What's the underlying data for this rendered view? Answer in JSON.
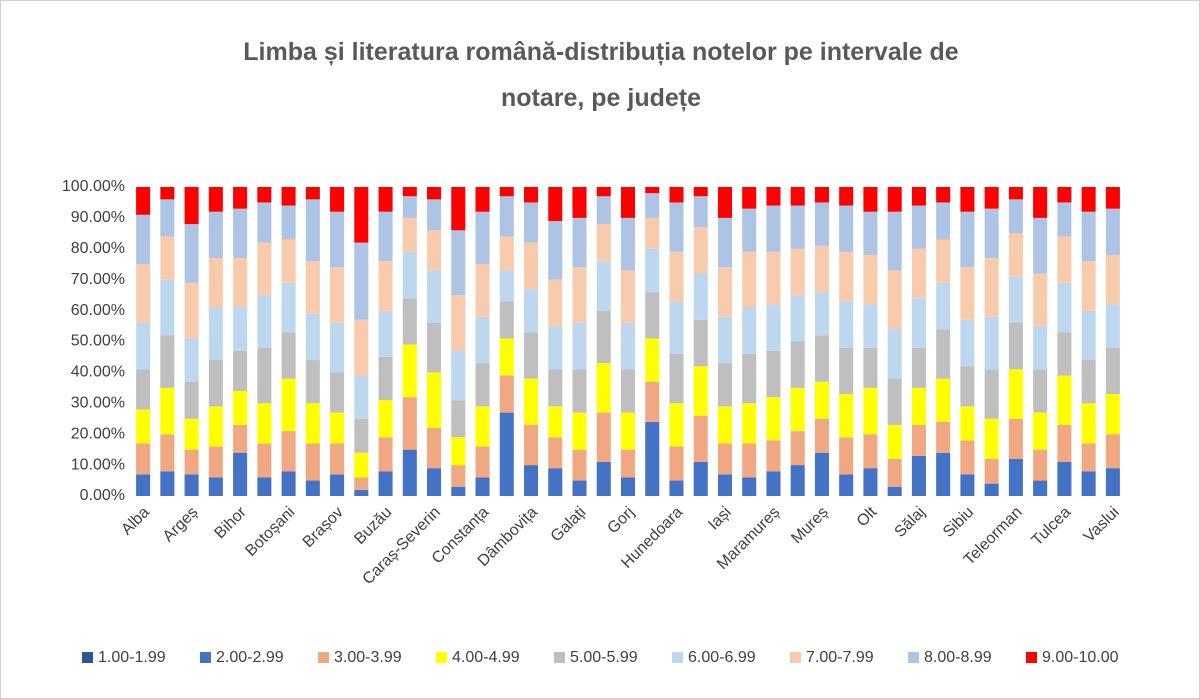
{
  "chart_data": {
    "type": "stacked_bar",
    "title": "Limba și literatura română-distribuția notelor pe intervale de notare, pe județe",
    "categories": [
      "Alba",
      null,
      "Argeș",
      null,
      "Bihor",
      null,
      "Botoșani",
      null,
      "Brașov",
      null,
      "Buzău",
      null,
      "Caraș-Severin",
      null,
      "Constanța",
      null,
      "Dâmbovița",
      null,
      "Galați",
      null,
      "Gorj",
      null,
      "Hunedoara",
      null,
      "Iași",
      null,
      "Maramureș",
      null,
      "Mureș",
      null,
      "Olt",
      null,
      "Sălaj",
      null,
      "Sibiu",
      null,
      "Teleorman",
      null,
      "Tulcea",
      null,
      "Vaslui"
    ],
    "series": [
      {
        "name": "1.00-1.99",
        "color": "#2e5597",
        "values": [
          0,
          0,
          0,
          0,
          0,
          0,
          0,
          0,
          0,
          0,
          0,
          0,
          0,
          0,
          0,
          0,
          0,
          0,
          0,
          0,
          0,
          0,
          0,
          0,
          0,
          0,
          0,
          0,
          0,
          0,
          0,
          0,
          0,
          0,
          0,
          0,
          0,
          0,
          0,
          0,
          0
        ]
      },
      {
        "name": "2.00-2.99",
        "color": "#4472c4",
        "values": [
          7,
          8,
          7,
          6,
          14,
          6,
          8,
          5,
          7,
          2,
          8,
          15,
          9,
          3,
          6,
          27,
          10,
          9,
          5,
          11,
          6,
          24,
          5,
          11,
          7,
          6,
          8,
          10,
          14,
          7,
          9,
          3,
          13,
          14,
          7,
          4,
          12,
          5,
          11,
          8,
          9
        ]
      },
      {
        "name": "3.00-3.99",
        "color": "#f0a882",
        "values": [
          10,
          12,
          8,
          10,
          9,
          11,
          13,
          12,
          10,
          4,
          11,
          17,
          13,
          7,
          10,
          12,
          13,
          10,
          10,
          16,
          9,
          13,
          11,
          15,
          10,
          11,
          10,
          11,
          11,
          12,
          11,
          9,
          10,
          10,
          11,
          8,
          13,
          10,
          12,
          9,
          11
        ]
      },
      {
        "name": "4.00-4.99",
        "color": "#ffff00",
        "values": [
          11,
          15,
          10,
          13,
          11,
          13,
          17,
          13,
          10,
          8,
          12,
          17,
          18,
          9,
          13,
          12,
          15,
          10,
          12,
          16,
          12,
          14,
          14,
          16,
          12,
          13,
          14,
          14,
          12,
          14,
          15,
          11,
          12,
          14,
          11,
          13,
          16,
          12,
          16,
          13,
          13
        ]
      },
      {
        "name": "5.00-5.99",
        "color": "#bfbfbf",
        "values": [
          13,
          17,
          12,
          15,
          13,
          18,
          15,
          14,
          13,
          11,
          14,
          15,
          16,
          12,
          14,
          12,
          15,
          12,
          14,
          17,
          14,
          15,
          16,
          15,
          14,
          16,
          15,
          15,
          15,
          15,
          13,
          15,
          13,
          16,
          13,
          16,
          15,
          14,
          14,
          14,
          15
        ]
      },
      {
        "name": "6.00-6.99",
        "color": "#bdd7ee",
        "values": [
          15,
          18,
          14,
          17,
          14,
          17,
          16,
          15,
          16,
          14,
          15,
          15,
          17,
          16,
          15,
          10,
          14,
          14,
          15,
          16,
          15,
          14,
          17,
          15,
          15,
          15,
          15,
          15,
          14,
          15,
          14,
          16,
          16,
          15,
          15,
          17,
          15,
          14,
          16,
          16,
          14
        ]
      },
      {
        "name": "7.00-7.99",
        "color": "#f8cbad",
        "values": [
          19,
          14,
          18,
          16,
          16,
          17,
          14,
          17,
          18,
          18,
          16,
          11,
          13,
          18,
          17,
          11,
          15,
          15,
          18,
          12,
          17,
          10,
          16,
          15,
          16,
          18,
          17,
          15,
          15,
          16,
          16,
          19,
          16,
          14,
          17,
          19,
          14,
          17,
          15,
          16,
          16
        ]
      },
      {
        "name": "8.00-8.99",
        "color": "#adc4e4",
        "values": [
          16,
          12,
          19,
          15,
          16,
          13,
          11,
          20,
          18,
          25,
          16,
          7,
          10,
          21,
          17,
          13,
          13,
          19,
          16,
          9,
          17,
          8,
          16,
          10,
          16,
          14,
          15,
          14,
          14,
          15,
          14,
          19,
          14,
          12,
          18,
          16,
          11,
          18,
          11,
          16,
          15
        ]
      },
      {
        "name": "9.00-10.00",
        "color": "#ff0000",
        "values": [
          9,
          4,
          12,
          8,
          7,
          5,
          6,
          4,
          8,
          18,
          8,
          3,
          4,
          14,
          8,
          3,
          5,
          11,
          10,
          3,
          10,
          2,
          5,
          3,
          10,
          7,
          6,
          6,
          5,
          6,
          8,
          8,
          6,
          5,
          8,
          7,
          4,
          10,
          5,
          8,
          7
        ]
      }
    ],
    "ylim": [
      0,
      100
    ],
    "yticks": [
      {
        "value": 0,
        "label": "0.00%"
      },
      {
        "value": 10,
        "label": "10.00%"
      },
      {
        "value": 20,
        "label": "20.00%"
      },
      {
        "value": 30,
        "label": "30.00%"
      },
      {
        "value": 40,
        "label": "40.00%"
      },
      {
        "value": 50,
        "label": "50.00%"
      },
      {
        "value": 60,
        "label": "60.00%"
      },
      {
        "value": 70,
        "label": "70.00%"
      },
      {
        "value": 80,
        "label": "80.00%"
      },
      {
        "value": 90,
        "label": "90.00%"
      },
      {
        "value": 100,
        "label": "100.00%"
      }
    ],
    "grid": false,
    "legend": "bottom"
  }
}
